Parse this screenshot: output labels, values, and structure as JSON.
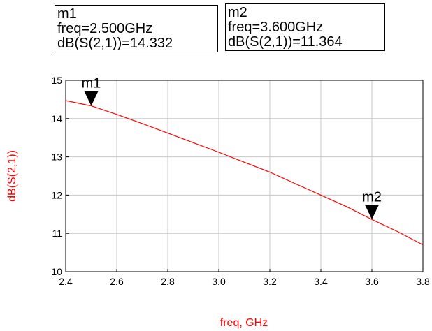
{
  "markers": [
    {
      "name": "m1",
      "freq_text": "freq=2.500GHz",
      "value_text": "dB(S(2,1))=14.332",
      "x": 2.5,
      "y": 14.332
    },
    {
      "name": "m2",
      "freq_text": "freq=3.600GHz",
      "value_text": "dB(S(2,1))=11.364",
      "x": 3.6,
      "y": 11.364
    }
  ],
  "chart_data": {
    "type": "line",
    "title": "",
    "xlabel": "freq, GHz",
    "ylabel": "dB(S(2,1))",
    "xlim": [
      2.4,
      3.8
    ],
    "ylim": [
      10,
      15
    ],
    "xticks": [
      "2.4",
      "2.6",
      "2.8",
      "3.0",
      "3.2",
      "3.4",
      "3.6",
      "3.8"
    ],
    "yticks": [
      "10",
      "11",
      "12",
      "13",
      "14",
      "15"
    ],
    "grid": true,
    "series": [
      {
        "color": "#ff0000",
        "x": [
          2.4,
          2.5,
          2.6,
          2.7,
          2.8,
          2.9,
          3.0,
          3.1,
          3.2,
          3.3,
          3.4,
          3.5,
          3.6,
          3.7,
          3.8
        ],
        "y": [
          14.47,
          14.332,
          14.11,
          13.87,
          13.62,
          13.37,
          13.12,
          12.86,
          12.6,
          12.3,
          12.0,
          11.7,
          11.364,
          11.05,
          10.7
        ]
      }
    ]
  }
}
